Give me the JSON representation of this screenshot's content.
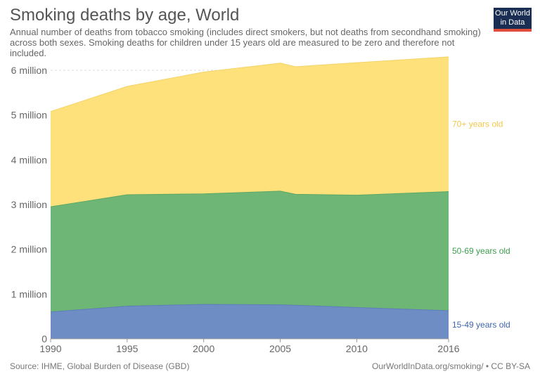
{
  "header": {
    "title": "Smoking deaths by age, World",
    "subtitle": "Annual number of deaths from tobacco smoking (includes direct smokers, but not deaths from secondhand smoking) across both sexes. Smoking deaths for children under 15 years old are measured to be zero and therefore not included.",
    "logo_line1": "Our World",
    "logo_line2": "in Data"
  },
  "footer": {
    "source": "Source: IHME, Global Burden of Disease (GBD)",
    "credit": "OurWorldInData.org/smoking/ • CC BY-SA"
  },
  "colors": {
    "age_15_49": "#6f8dc5",
    "age_50_69": "#6db675",
    "age_70_plus": "#fee17a",
    "label_15_49": "#3f64ad",
    "label_50_69": "#3d9e4c",
    "label_70_plus": "#f2c94c"
  },
  "chart_data": {
    "type": "area",
    "stacked": true,
    "x": [
      1990,
      1995,
      2000,
      2005,
      2006,
      2010,
      2016
    ],
    "series": [
      {
        "name": "15-49 years old",
        "values": [
          600000,
          730000,
          770000,
          760000,
          750000,
          700000,
          630000
        ]
      },
      {
        "name": "50-69 years old",
        "values": [
          2350000,
          2490000,
          2470000,
          2540000,
          2480000,
          2510000,
          2660000
        ]
      },
      {
        "name": "70+ years old",
        "values": [
          2130000,
          2420000,
          2720000,
          2860000,
          2850000,
          2960000,
          3010000
        ]
      }
    ],
    "x_ticks": [
      "1990",
      "1995",
      "2000",
      "2005",
      "2010",
      "2016"
    ],
    "y_ticks": [
      "0",
      "1 million",
      "2 million",
      "3 million",
      "4 million",
      "5 million",
      "6 million"
    ],
    "y_tick_values": [
      0,
      1000000,
      2000000,
      3000000,
      4000000,
      5000000,
      6000000
    ],
    "xlim": [
      1990,
      2016
    ],
    "ylim": [
      0,
      6000000
    ],
    "grid": "horizontal dashed",
    "legend": "inline labels right of plot"
  }
}
